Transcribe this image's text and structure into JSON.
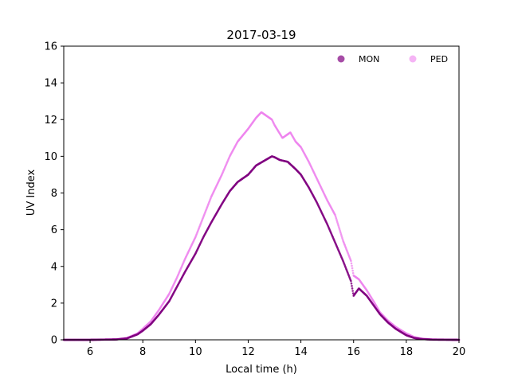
{
  "chart_data": {
    "type": "scatter",
    "title": "2017-03-19",
    "xlabel": "Local time (h)",
    "ylabel": "UV Index",
    "xlim": [
      5,
      20
    ],
    "ylim": [
      0,
      16
    ],
    "xticks": [
      6,
      8,
      10,
      12,
      14,
      16,
      18,
      20
    ],
    "yticks": [
      0,
      2,
      4,
      6,
      8,
      10,
      12,
      14,
      16
    ],
    "grid": false,
    "legend_position": "top-right",
    "series": [
      {
        "name": "MON",
        "color": "#800080",
        "points": [
          [
            5.0,
            0.0
          ],
          [
            6.0,
            0.0
          ],
          [
            7.0,
            0.02
          ],
          [
            7.4,
            0.08
          ],
          [
            7.8,
            0.3
          ],
          [
            8.0,
            0.5
          ],
          [
            8.3,
            0.85
          ],
          [
            8.6,
            1.35
          ],
          [
            9.0,
            2.1
          ],
          [
            9.3,
            2.9
          ],
          [
            9.6,
            3.7
          ],
          [
            10.0,
            4.7
          ],
          [
            10.3,
            5.6
          ],
          [
            10.6,
            6.4
          ],
          [
            11.0,
            7.4
          ],
          [
            11.3,
            8.1
          ],
          [
            11.6,
            8.6
          ],
          [
            12.0,
            9.0
          ],
          [
            12.3,
            9.5
          ],
          [
            12.6,
            9.75
          ],
          [
            12.9,
            10.0
          ],
          [
            13.0,
            9.95
          ],
          [
            13.2,
            9.8
          ],
          [
            13.5,
            9.7
          ],
          [
            13.8,
            9.3
          ],
          [
            14.0,
            9.0
          ],
          [
            14.3,
            8.3
          ],
          [
            14.6,
            7.5
          ],
          [
            15.0,
            6.3
          ],
          [
            15.3,
            5.3
          ],
          [
            15.6,
            4.3
          ],
          [
            15.9,
            3.2
          ],
          [
            16.0,
            2.4
          ],
          [
            16.2,
            2.8
          ],
          [
            16.5,
            2.4
          ],
          [
            16.8,
            1.8
          ],
          [
            17.0,
            1.4
          ],
          [
            17.3,
            0.95
          ],
          [
            17.6,
            0.6
          ],
          [
            18.0,
            0.25
          ],
          [
            18.3,
            0.1
          ],
          [
            18.6,
            0.04
          ],
          [
            19.0,
            0.01
          ],
          [
            20.0,
            0.0
          ]
        ]
      },
      {
        "name": "PED",
        "color": "#ee82ee",
        "points": [
          [
            5.0,
            0.0
          ],
          [
            6.0,
            0.0
          ],
          [
            7.0,
            0.03
          ],
          [
            7.4,
            0.1
          ],
          [
            7.8,
            0.35
          ],
          [
            8.0,
            0.6
          ],
          [
            8.3,
            1.0
          ],
          [
            8.6,
            1.6
          ],
          [
            9.0,
            2.5
          ],
          [
            9.3,
            3.4
          ],
          [
            9.6,
            4.4
          ],
          [
            10.0,
            5.6
          ],
          [
            10.3,
            6.7
          ],
          [
            10.6,
            7.8
          ],
          [
            11.0,
            9.0
          ],
          [
            11.3,
            10.0
          ],
          [
            11.6,
            10.8
          ],
          [
            12.0,
            11.5
          ],
          [
            12.3,
            12.1
          ],
          [
            12.5,
            12.4
          ],
          [
            12.7,
            12.2
          ],
          [
            12.9,
            12.0
          ],
          [
            13.0,
            11.7
          ],
          [
            13.3,
            11.0
          ],
          [
            13.6,
            11.3
          ],
          [
            13.8,
            10.8
          ],
          [
            14.0,
            10.5
          ],
          [
            14.3,
            9.7
          ],
          [
            14.6,
            8.8
          ],
          [
            15.0,
            7.6
          ],
          [
            15.3,
            6.8
          ],
          [
            15.6,
            5.4
          ],
          [
            15.9,
            4.3
          ],
          [
            16.0,
            3.5
          ],
          [
            16.2,
            3.3
          ],
          [
            16.5,
            2.7
          ],
          [
            16.8,
            2.0
          ],
          [
            17.0,
            1.5
          ],
          [
            17.3,
            1.05
          ],
          [
            17.6,
            0.7
          ],
          [
            18.0,
            0.35
          ],
          [
            18.3,
            0.15
          ],
          [
            18.6,
            0.06
          ],
          [
            19.0,
            0.02
          ],
          [
            20.0,
            0.0
          ]
        ]
      }
    ]
  }
}
